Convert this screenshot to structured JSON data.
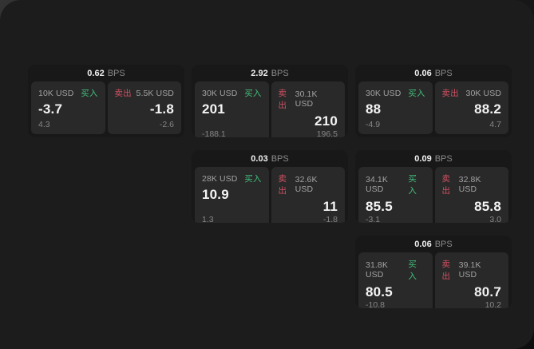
{
  "labels": {
    "bps_unit": "BPS",
    "buy": "买入",
    "sell": "卖出"
  },
  "colors": {
    "window_bg": "#1c1c1c",
    "card_bg": "#181818",
    "pane_bg": "#292929",
    "buy_green": "#42bf7b",
    "sell_red": "#d15062",
    "value_white": "#f4f4f4",
    "muted_gray": "#8a8a8a"
  },
  "cards": [
    {
      "bps": "0.62",
      "buy_amount": "10K USD",
      "buy_price": "-3.7",
      "buy_delta": "4.3",
      "sell_amount": "5.5K USD",
      "sell_price": "-1.8",
      "sell_delta": "-2.6"
    },
    {
      "bps": "2.92",
      "buy_amount": "30K USD",
      "buy_price": "201",
      "buy_delta": "-188.1",
      "sell_amount": "30.1K USD",
      "sell_price": "210",
      "sell_delta": "196.5"
    },
    {
      "bps": "0.06",
      "buy_amount": "30K USD",
      "buy_price": "88",
      "buy_delta": "-4.9",
      "sell_amount": "30K USD",
      "sell_price": "88.2",
      "sell_delta": "4.7"
    },
    {
      "bps": "0.03",
      "buy_amount": "28K USD",
      "buy_price": "10.9",
      "buy_delta": "1.3",
      "sell_amount": "32.6K USD",
      "sell_price": "11",
      "sell_delta": "-1.8"
    },
    {
      "bps": "0.09",
      "buy_amount": "34.1K USD",
      "buy_price": "85.5",
      "buy_delta": "-3.1",
      "sell_amount": "32.8K USD",
      "sell_price": "85.8",
      "sell_delta": "3.0"
    },
    {
      "bps": "0.06",
      "buy_amount": "31.8K USD",
      "buy_price": "80.5",
      "buy_delta": "-10.8",
      "sell_amount": "39.1K USD",
      "sell_price": "80.7",
      "sell_delta": "10.2"
    }
  ]
}
